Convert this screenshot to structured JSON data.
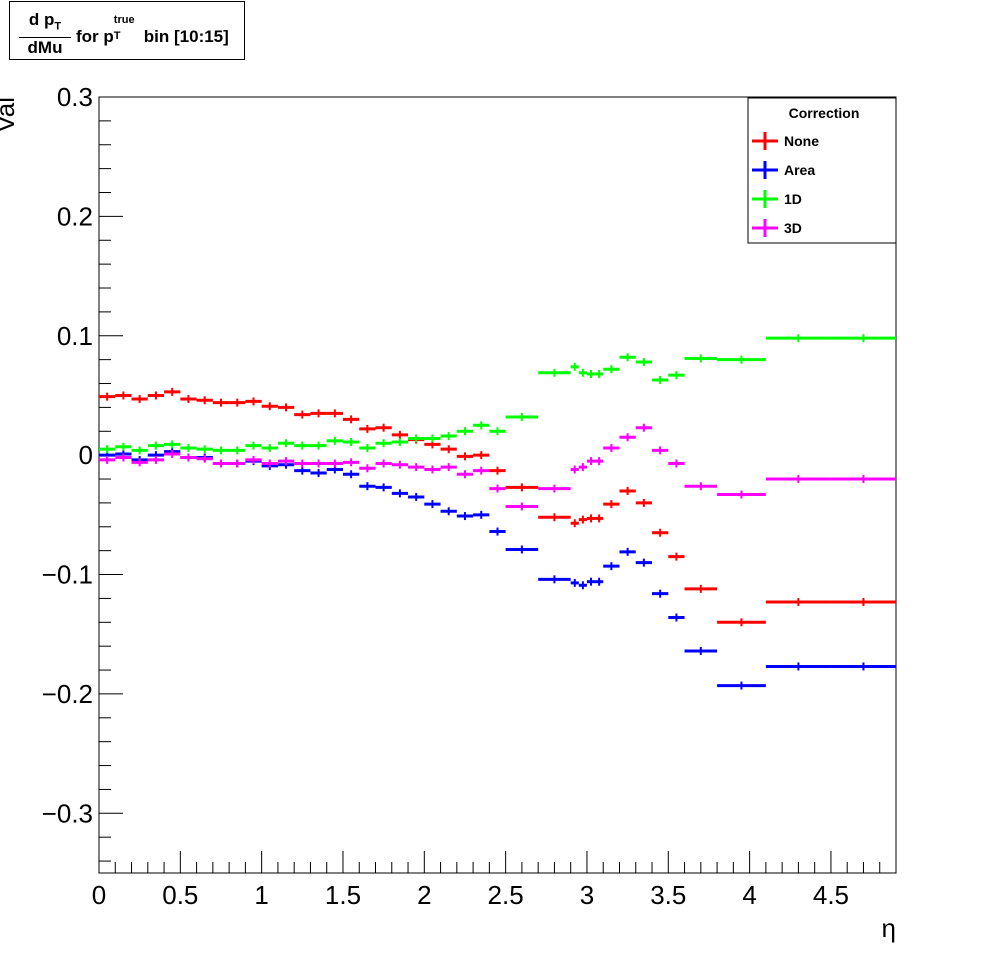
{
  "title": {
    "frac_num_main": "d p",
    "frac_num_sub": "T",
    "frac_den": "dMu",
    "rest_prefix": "for p",
    "rest_sup": "true",
    "rest_sub": "T",
    "rest_suffix": "bin [10:15]"
  },
  "chart_data": {
    "type": "scatter",
    "xlabel": "η",
    "ylabel": "Val",
    "xlim": [
      0,
      4.9
    ],
    "ylim": [
      -0.35,
      0.3
    ],
    "x_ticks": [
      0,
      0.5,
      1,
      1.5,
      2,
      2.5,
      3,
      3.5,
      4,
      4.5
    ],
    "x_tick_labels": [
      "0",
      "0.5",
      "1",
      "1.5",
      "2",
      "2.5",
      "3",
      "3.5",
      "4",
      "4.5"
    ],
    "y_ticks": [
      -0.3,
      -0.2,
      -0.1,
      0,
      0.1,
      0.2,
      0.3
    ],
    "y_tick_labels": [
      "−0.3",
      "−0.2",
      "−0.1",
      "0",
      "0.1",
      "0.2",
      "0.3"
    ],
    "legend": {
      "title": "Correction",
      "position": "top-right"
    },
    "x_bins": [
      0,
      0.1,
      0.2,
      0.3,
      0.4,
      0.5,
      0.6,
      0.7,
      0.8,
      0.9,
      1.0,
      1.1,
      1.2,
      1.3,
      1.4,
      1.5,
      1.6,
      1.7,
      1.8,
      1.9,
      2.0,
      2.1,
      2.2,
      2.3,
      2.4,
      2.5,
      2.7,
      2.9,
      2.95,
      3.0,
      3.05,
      3.1,
      3.2,
      3.3,
      3.4,
      3.5,
      3.6,
      3.8,
      4.1,
      4.5,
      4.9
    ],
    "series": [
      {
        "name": "None",
        "color": "#ff0000",
        "values": [
          0.049,
          0.05,
          0.047,
          0.05,
          0.053,
          0.047,
          0.046,
          0.044,
          0.044,
          0.045,
          0.041,
          0.04,
          0.034,
          0.035,
          0.035,
          0.03,
          0.022,
          0.023,
          0.017,
          0.013,
          0.009,
          0.005,
          -0.001,
          0.0,
          -0.013,
          -0.027,
          -0.052,
          -0.057,
          -0.054,
          -0.053,
          -0.053,
          -0.041,
          -0.03,
          -0.04,
          -0.065,
          -0.085,
          -0.112,
          -0.14,
          -0.123,
          -0.123
        ]
      },
      {
        "name": "Area",
        "color": "#0000ff",
        "values": [
          0.0,
          0.001,
          -0.004,
          0.0,
          0.003,
          -0.002,
          -0.002,
          -0.007,
          -0.007,
          -0.005,
          -0.009,
          -0.008,
          -0.013,
          -0.015,
          -0.012,
          -0.016,
          -0.026,
          -0.027,
          -0.032,
          -0.035,
          -0.041,
          -0.047,
          -0.051,
          -0.05,
          -0.064,
          -0.079,
          -0.104,
          -0.107,
          -0.109,
          -0.106,
          -0.106,
          -0.093,
          -0.081,
          -0.09,
          -0.116,
          -0.136,
          -0.164,
          -0.193,
          -0.177,
          -0.177
        ]
      },
      {
        "name": "1D",
        "color": "#00ff00",
        "values": [
          0.005,
          0.007,
          0.004,
          0.008,
          0.009,
          0.006,
          0.005,
          0.004,
          0.004,
          0.008,
          0.006,
          0.01,
          0.008,
          0.008,
          0.012,
          0.011,
          0.006,
          0.01,
          0.011,
          0.014,
          0.014,
          0.016,
          0.02,
          0.025,
          0.02,
          0.032,
          0.069,
          0.074,
          0.069,
          0.068,
          0.068,
          0.072,
          0.082,
          0.078,
          0.063,
          0.067,
          0.081,
          0.08,
          0.098,
          0.098
        ]
      },
      {
        "name": "3D",
        "color": "#ff00ff",
        "values": [
          -0.004,
          -0.002,
          -0.006,
          -0.004,
          0.001,
          -0.002,
          -0.003,
          -0.007,
          -0.007,
          -0.004,
          -0.007,
          -0.005,
          -0.007,
          -0.007,
          -0.007,
          -0.006,
          -0.011,
          -0.007,
          -0.008,
          -0.01,
          -0.012,
          -0.01,
          -0.016,
          -0.013,
          -0.028,
          -0.043,
          -0.028,
          -0.012,
          -0.01,
          -0.005,
          -0.005,
          0.006,
          0.015,
          0.023,
          0.004,
          -0.007,
          -0.026,
          -0.033,
          -0.02,
          -0.02
        ]
      }
    ]
  }
}
